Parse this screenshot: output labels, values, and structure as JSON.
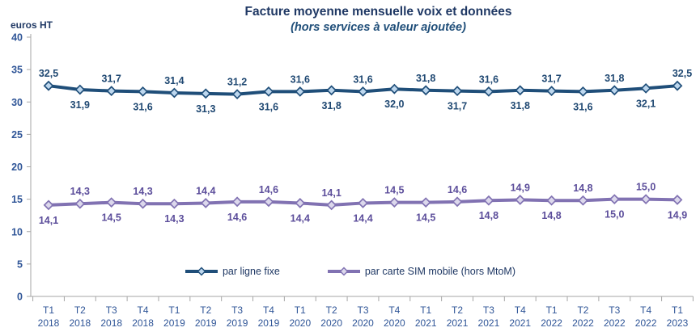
{
  "chart_data": {
    "type": "line",
    "title": "Facture moyenne mensuelle voix et données",
    "subtitle": "(hors services à valeur ajoutée)",
    "y_axis": {
      "unit_label": "euros HT",
      "min": 0,
      "max": 40,
      "tick_step": 5,
      "ticks": [
        0,
        5,
        10,
        15,
        20,
        25,
        30,
        35,
        40
      ]
    },
    "grid": false,
    "legend_position": "bottom-center-inside",
    "categories": [
      {
        "quarter": "T1",
        "year": "2018"
      },
      {
        "quarter": "T2",
        "year": "2018"
      },
      {
        "quarter": "T3",
        "year": "2018"
      },
      {
        "quarter": "T4",
        "year": "2018"
      },
      {
        "quarter": "T1",
        "year": "2019"
      },
      {
        "quarter": "T2",
        "year": "2019"
      },
      {
        "quarter": "T3",
        "year": "2019"
      },
      {
        "quarter": "T4",
        "year": "2019"
      },
      {
        "quarter": "T1",
        "year": "2020"
      },
      {
        "quarter": "T2",
        "year": "2020"
      },
      {
        "quarter": "T3",
        "year": "2020"
      },
      {
        "quarter": "T4",
        "year": "2020"
      },
      {
        "quarter": "T1",
        "year": "2021"
      },
      {
        "quarter": "T2",
        "year": "2021"
      },
      {
        "quarter": "T3",
        "year": "2021"
      },
      {
        "quarter": "T4",
        "year": "2021"
      },
      {
        "quarter": "T1",
        "year": "2022"
      },
      {
        "quarter": "T2",
        "year": "2022"
      },
      {
        "quarter": "T3",
        "year": "2022"
      },
      {
        "quarter": "T4",
        "year": "2022"
      },
      {
        "quarter": "T1",
        "year": "2023"
      }
    ],
    "series": [
      {
        "name": "par ligne fixe",
        "color": "#1F4E79",
        "marker_fill": "#BDD7EE",
        "label_color": "#1F4872",
        "label_start": "above",
        "values": [
          32.5,
          31.9,
          31.7,
          31.6,
          31.4,
          31.3,
          31.2,
          31.6,
          31.6,
          31.8,
          31.6,
          32.0,
          31.8,
          31.7,
          31.6,
          31.8,
          31.7,
          31.6,
          31.8,
          32.1,
          32.5
        ]
      },
      {
        "name": "par carte SIM mobile (hors MtoM)",
        "color": "#8172B2",
        "marker_fill": "#DCD8EC",
        "label_color": "#5C4E9B",
        "label_start": "below",
        "values": [
          14.1,
          14.3,
          14.5,
          14.3,
          14.3,
          14.4,
          14.6,
          14.6,
          14.4,
          14.1,
          14.4,
          14.5,
          14.5,
          14.6,
          14.8,
          14.9,
          14.8,
          14.8,
          15.0,
          15.0,
          14.9
        ]
      }
    ],
    "colors": {
      "axis_line": "#A6A6A6",
      "axis_tick_label": "#2F5597",
      "title": "#1F3864"
    }
  }
}
